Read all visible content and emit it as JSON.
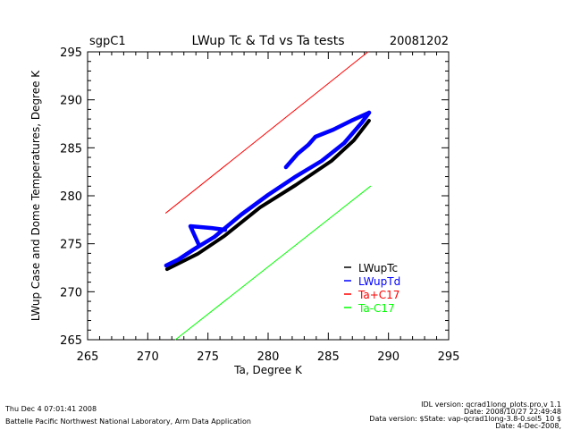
{
  "chart_data": {
    "type": "line",
    "site": "sgpC1",
    "title": "LWup Tc & Td vs Ta tests",
    "date": "20081202",
    "xlabel": "Ta, Degree K",
    "ylabel": "LWup Case and Dome Temperatures, Degree K",
    "xlim": [
      265,
      295
    ],
    "ylim": [
      265,
      295
    ],
    "xticks": [
      "265",
      "270",
      "275",
      "280",
      "285",
      "290",
      "295"
    ],
    "yticks": [
      "265",
      "270",
      "275",
      "280",
      "285",
      "290",
      "295"
    ],
    "grid": false,
    "legend_position": "bottom-right",
    "series": [
      {
        "name": "LWupTc",
        "color": "#000000",
        "segments": [
          [
            [
              271.53,
              272.54
            ],
            [
              274.06,
              274.12
            ],
            [
              276.29,
              275.99
            ],
            [
              279.25,
              278.97
            ],
            [
              282.22,
              281.3
            ],
            [
              285.19,
              283.82
            ],
            [
              287.05,
              285.96
            ],
            [
              288.31,
              288.01
            ]
          ]
        ]
      },
      {
        "name": "LWupTd",
        "color": "#0000ff",
        "segments": [
          [
            [
              271.53,
              272.73
            ],
            [
              272.57,
              273.38
            ],
            [
              273.69,
              274.31
            ],
            [
              275.54,
              275.71
            ],
            [
              277.77,
              278.04
            ],
            [
              280.0,
              280.09
            ],
            [
              282.22,
              281.95
            ],
            [
              284.45,
              283.63
            ],
            [
              286.31,
              285.49
            ],
            [
              287.79,
              287.64
            ],
            [
              288.39,
              288.66
            ]
          ],
          [
            [
              288.39,
              288.66
            ],
            [
              286.9,
              287.82
            ],
            [
              285.42,
              286.89
            ],
            [
              283.93,
              286.15
            ],
            [
              283.34,
              285.31
            ],
            [
              282.45,
              284.38
            ],
            [
              281.48,
              282.98
            ]
          ],
          [
            [
              272.57,
              273.38
            ],
            [
              274.28,
              274.78
            ],
            [
              273.54,
              276.83
            ],
            [
              275.32,
              276.64
            ],
            [
              276.43,
              276.45
            ]
          ]
        ]
      },
      {
        "name": "Ta+C17",
        "color": "#ff0000",
        "segments": [
          [
            [
              271.5,
              278.2
            ],
            [
              288.3,
              295.0
            ]
          ]
        ]
      },
      {
        "name": "Ta-C17",
        "color": "#00ff00",
        "segments": [
          [
            [
              272.3,
              265.0
            ],
            [
              288.5,
              281.0
            ]
          ]
        ]
      }
    ]
  },
  "footer": {
    "timestamp": "Thu Dec  4 07:01:41 2008",
    "organization": "Battelle Pacific Northwest National Laboratory, Arm Data Application",
    "idl_version": "IDL version: qcrad1long_plots.pro,v 1.1",
    "idl_date": "Date: 2008/10/27 22:49:48",
    "data_version": "Data version: $State: vap-qcrad1long-3.8-0.sol5_10 $",
    "data_date": "Date: 4-Dec-2008,"
  }
}
